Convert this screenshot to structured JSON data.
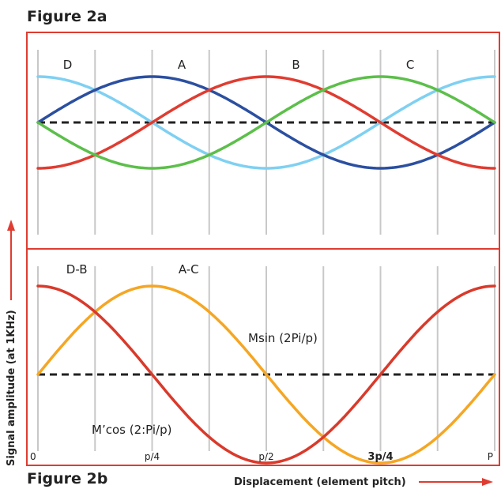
{
  "figures": {
    "fig_a_title": "Figure 2a",
    "fig_b_title": "Figure 2b"
  },
  "axes": {
    "ylabel": "Signal amplitude (at 1KHz)",
    "xlabel": "Displacement (element pitch)",
    "x_ticks": [
      "0",
      "p/4",
      "p/2",
      "3p/4",
      "P"
    ]
  },
  "colors": {
    "frame": "#e03c31",
    "grid": "#c8c8c8",
    "zero_line": "#222222",
    "arrow": "#e03c31"
  },
  "chart_data": [
    {
      "type": "line",
      "title": "Figure 2a",
      "xlabel": "Displacement (element pitch)",
      "ylabel": "Signal amplitude (at 1KHz)",
      "x_range": [
        0,
        1
      ],
      "y_range": [
        -1.2,
        1.2
      ],
      "region_labels": [
        "D",
        "A",
        "B",
        "C"
      ],
      "series": [
        {
          "name": "D",
          "color": "#7fd0f2",
          "x": [
            0,
            0.125,
            0.25,
            0.375,
            0.5,
            0.625,
            0.75,
            0.875,
            1
          ],
          "y": [
            1,
            0.71,
            0,
            -0.71,
            -1,
            -0.71,
            0,
            0.71,
            1
          ]
        },
        {
          "name": "A",
          "color": "#2b4fa0",
          "x": [
            0,
            0.125,
            0.25,
            0.375,
            0.5,
            0.625,
            0.75,
            0.875,
            1
          ],
          "y": [
            0,
            0.71,
            1,
            0.71,
            0,
            -0.71,
            -1,
            -0.71,
            0
          ]
        },
        {
          "name": "B",
          "color": "#e03c31",
          "x": [
            0,
            0.125,
            0.25,
            0.375,
            0.5,
            0.625,
            0.75,
            0.875,
            1
          ],
          "y": [
            -1,
            -0.71,
            0,
            0.71,
            1,
            0.71,
            0,
            -0.71,
            -1
          ]
        },
        {
          "name": "C",
          "color": "#5cbf4a",
          "x": [
            0,
            0.125,
            0.25,
            0.375,
            0.5,
            0.625,
            0.75,
            0.875,
            1
          ],
          "y": [
            0,
            -0.71,
            -1,
            -0.71,
            0,
            0.71,
            1,
            0.71,
            0
          ]
        }
      ],
      "zero_line": true,
      "grid": true
    },
    {
      "type": "line",
      "title": "Figure 2b",
      "xlabel": "Displacement (element pitch)",
      "ylabel": "Signal amplitude (at 1KHz)",
      "x_ticks": [
        "0",
        "p/4",
        "p/2",
        "3p/4",
        "P"
      ],
      "x_range": [
        0,
        1
      ],
      "y_range": [
        -1.2,
        1.2
      ],
      "region_labels": [
        "D-B",
        "A-C"
      ],
      "series": [
        {
          "name": "Msin (2Pi/p)",
          "color": "#f5a623",
          "x": [
            0,
            0.125,
            0.25,
            0.375,
            0.5,
            0.625,
            0.75,
            0.875,
            1
          ],
          "y": [
            0,
            0.71,
            1,
            0.71,
            0,
            -0.71,
            -1,
            -0.71,
            0
          ]
        },
        {
          "name": "M’cos (2:Pi/p)",
          "color": "#d93a2b",
          "x": [
            0,
            0.125,
            0.25,
            0.375,
            0.5,
            0.625,
            0.75,
            0.875,
            1
          ],
          "y": [
            1,
            0.71,
            0,
            -0.71,
            -1,
            -0.71,
            0,
            0.71,
            1
          ]
        }
      ],
      "zero_line": true,
      "grid": true
    }
  ]
}
